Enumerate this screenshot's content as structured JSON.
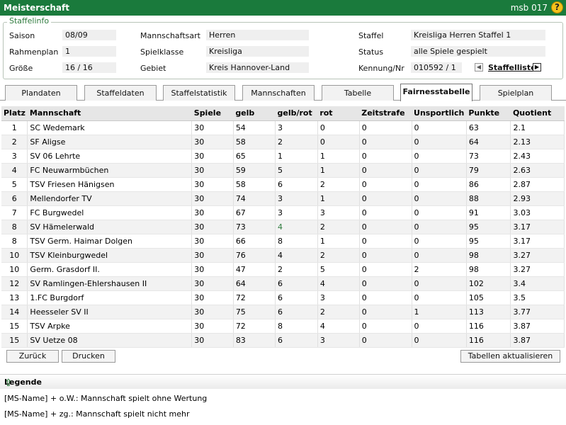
{
  "titlebar": {
    "title": "Meisterschaft",
    "code": "msb 017",
    "help_icon": "?"
  },
  "staffelinfo": {
    "legend": "Staffelinfo",
    "saison_label": "Saison",
    "saison": "08/09",
    "rahmenplan_label": "Rahmenplan",
    "rahmenplan": "1",
    "groesse_label": "Größe",
    "groesse": "16 / 16",
    "mannschaftsart_label": "Mannschaftsart",
    "mannschaftsart": "Herren",
    "spielklasse_label": "Spielklasse",
    "spielklasse": "Kreisliga",
    "gebiet_label": "Gebiet",
    "gebiet": "Kreis Hannover-Land",
    "staffel_label": "Staffel",
    "staffel": "Kreisliga Herren Staffel 1",
    "status_label": "Status",
    "status": "alle Spiele gespielt",
    "kennung_label": "Kennung/Nr",
    "kennung": "010592",
    "kennung_nr": "/ 1",
    "staffelliste": "Staffelliste"
  },
  "tabs": [
    "Plandaten",
    "Staffeldaten",
    "Staffelstatistik",
    "Mannschaften",
    "Tabelle",
    "Fairnesstabelle",
    "Spielplan"
  ],
  "active_tab": "Fairnesstabelle",
  "table": {
    "headers": [
      "Platz",
      "Mannschaft",
      "Spiele",
      "gelb",
      "gelb/rot",
      "rot",
      "Zeitstrafe",
      "Unsportlich",
      "Punkte",
      "Quotient"
    ],
    "rows": [
      [
        "1",
        "SC Wedemark",
        "30",
        "54",
        "3",
        "0",
        "0",
        "0",
        "63",
        "2.1"
      ],
      [
        "2",
        "SF Aligse",
        "30",
        "58",
        "2",
        "0",
        "0",
        "0",
        "64",
        "2.13"
      ],
      [
        "3",
        "SV 06 Lehrte",
        "30",
        "65",
        "1",
        "1",
        "0",
        "0",
        "73",
        "2.43"
      ],
      [
        "4",
        "FC Neuwarmbüchen",
        "30",
        "59",
        "5",
        "1",
        "0",
        "0",
        "79",
        "2.63"
      ],
      [
        "5",
        "TSV Friesen Hänigsen",
        "30",
        "58",
        "6",
        "2",
        "0",
        "0",
        "86",
        "2.87"
      ],
      [
        "6",
        "Mellendorfer TV",
        "30",
        "74",
        "3",
        "1",
        "0",
        "0",
        "88",
        "2.93"
      ],
      [
        "7",
        "FC Burgwedel",
        "30",
        "67",
        "3",
        "3",
        "0",
        "0",
        "91",
        "3.03"
      ],
      [
        "8",
        "SV Hämelerwald",
        "30",
        "73",
        "4",
        "2",
        "0",
        "0",
        "95",
        "3.17"
      ],
      [
        "8",
        "TSV Germ. Haimar Dolgen",
        "30",
        "66",
        "8",
        "1",
        "0",
        "0",
        "95",
        "3.17"
      ],
      [
        "10",
        "TSV Kleinburgwedel",
        "30",
        "76",
        "4",
        "2",
        "0",
        "0",
        "98",
        "3.27"
      ],
      [
        "10",
        "Germ. Grasdorf II.",
        "30",
        "47",
        "2",
        "5",
        "0",
        "2",
        "98",
        "3.27"
      ],
      [
        "12",
        "SV Ramlingen-Ehlershausen II",
        "30",
        "64",
        "6",
        "4",
        "0",
        "0",
        "102",
        "3.4"
      ],
      [
        "13",
        "1.FC Burgdorf",
        "30",
        "72",
        "6",
        "3",
        "0",
        "0",
        "105",
        "3.5"
      ],
      [
        "14",
        "Heesseler SV II",
        "30",
        "75",
        "6",
        "2",
        "0",
        "1",
        "113",
        "3.77"
      ],
      [
        "15",
        "TSV Arpke",
        "30",
        "72",
        "8",
        "4",
        "0",
        "0",
        "116",
        "3.87"
      ],
      [
        "15",
        "SV Uetze 08",
        "30",
        "83",
        "6",
        "3",
        "0",
        "0",
        "116",
        "3.87"
      ]
    ]
  },
  "buttons": {
    "back": "Zurück",
    "print": "Drucken",
    "refresh": "Tabellen aktualisieren"
  },
  "legend": {
    "title": "Legende",
    "line1": "[MS-Name] + o.W.: Mannschaft spielt ohne Wertung",
    "line2": "[MS-Name] + zg.: Mannschaft spielt nicht mehr"
  }
}
